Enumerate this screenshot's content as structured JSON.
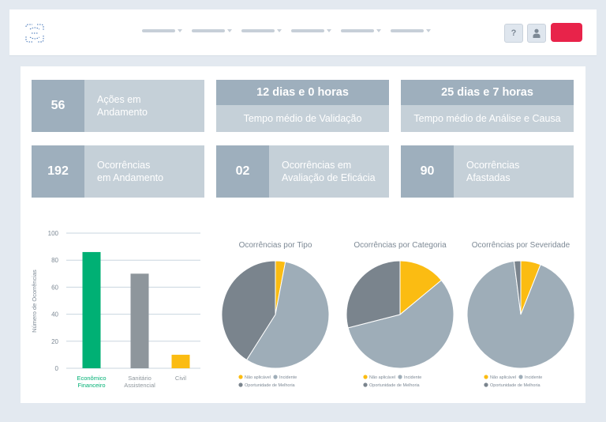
{
  "header": {
    "logo": "bracket-logo",
    "nav_items": [
      "",
      "",
      "",
      "",
      "",
      ""
    ],
    "help_label": "?",
    "red_button_color": "#e8234a"
  },
  "cards": [
    {
      "value": "56",
      "label_line1": "Ações em",
      "label_line2": "Andamento"
    },
    {
      "value": "12 dias e 0 horas",
      "label": "Tempo médio de Validação"
    },
    {
      "value": "25 dias e 7 horas",
      "label": "Tempo médio de Análise e Causa"
    },
    {
      "value": "192",
      "label_line1": "Ocorrências",
      "label_line2": "em Andamento"
    },
    {
      "value": "02",
      "label_line1": "Ocorrências em",
      "label_line2": "Avaliação de Eficácia"
    },
    {
      "value": "90",
      "label_line1": "Ocorrências",
      "label_line2": "Afastadas"
    }
  ],
  "colors": {
    "card_dark": "#9eafbd",
    "card_light": "#c5d0d8",
    "green": "#00b074",
    "gray_bar": "#8e969c",
    "yellow": "#fbbc12",
    "pie_light": "#9eadb8",
    "pie_dark": "#7a848d"
  },
  "chart_data": [
    {
      "type": "bar",
      "ylabel": "Número de Ocorrências",
      "ylim": [
        0,
        100
      ],
      "yticks": [
        0,
        20,
        40,
        60,
        80,
        100
      ],
      "categories": [
        {
          "line1": "Econômico",
          "line2": "Financeiro",
          "color": "#00b074"
        },
        {
          "line1": "Sanitário",
          "line2": "Assistencial",
          "color": "#8e969c"
        },
        {
          "line1": "Civil",
          "line2": "",
          "color": "#fbbc12"
        }
      ],
      "values": [
        86,
        70,
        10
      ],
      "grid": true
    },
    {
      "type": "pie",
      "title": "Ocorrências por Tipo",
      "slices": [
        {
          "name": "Não aplicável",
          "value": 3,
          "color": "#fbbc12"
        },
        {
          "name": "Incidente",
          "value": 56,
          "color": "#9eadb8"
        },
        {
          "name": "Oportunidade de Melhoria",
          "value": 41,
          "color": "#7a848d"
        }
      ],
      "legend": "bottom"
    },
    {
      "type": "pie",
      "title": "Ocorrências por Categoria",
      "slices": [
        {
          "name": "Não aplicável",
          "value": 14,
          "color": "#fbbc12"
        },
        {
          "name": "Incidente",
          "value": 57,
          "color": "#9eadb8"
        },
        {
          "name": "Oportunidade de Melhoria",
          "value": 29,
          "color": "#7a848d"
        }
      ],
      "legend": "bottom"
    },
    {
      "type": "pie",
      "title": "Ocorrências por Severidade",
      "slices": [
        {
          "name": "Não aplicável",
          "value": 6,
          "color": "#fbbc12"
        },
        {
          "name": "Incidente",
          "value": 92,
          "color": "#9eadb8"
        },
        {
          "name": "Oportunidade de Melhoria",
          "value": 2,
          "color": "#7a848d"
        }
      ],
      "legend": "bottom"
    }
  ]
}
